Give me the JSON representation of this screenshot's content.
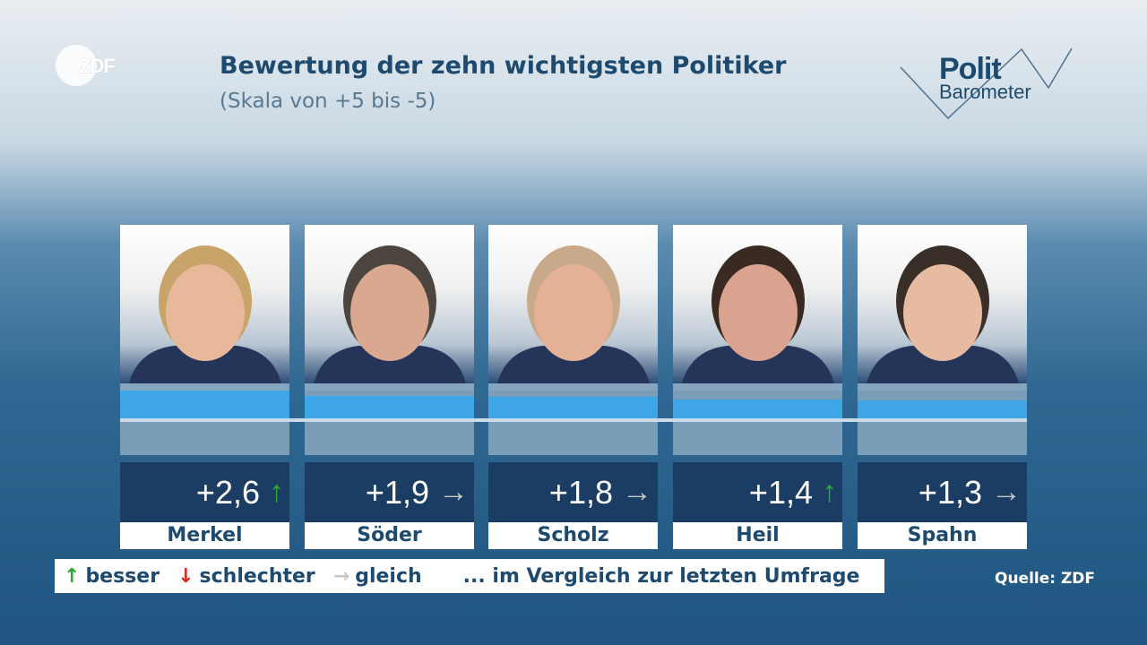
{
  "branding": {
    "broadcaster": "ZDF",
    "logo_line1": "Polit",
    "logo_line2": "Barometer"
  },
  "header": {
    "title": "Bewertung der zehn wichtigsten Politiker",
    "subtitle": "(Skala von +5 bis -5)"
  },
  "politicians": [
    {
      "name": "Merkel",
      "value": 2.6,
      "value_label": "+2,6",
      "trend": "up",
      "trend_symbol": "↑"
    },
    {
      "name": "Söder",
      "value": 1.9,
      "value_label": "+1,9",
      "trend": "same",
      "trend_symbol": "→"
    },
    {
      "name": "Scholz",
      "value": 1.8,
      "value_label": "+1,8",
      "trend": "same",
      "trend_symbol": "→"
    },
    {
      "name": "Heil",
      "value": 1.4,
      "value_label": "+1,4",
      "trend": "up",
      "trend_symbol": "↑"
    },
    {
      "name": "Spahn",
      "value": 1.3,
      "value_label": "+1,3",
      "trend": "same",
      "trend_symbol": "→"
    }
  ],
  "legend": {
    "up_symbol": "↑",
    "up": "besser",
    "down_symbol": "↓",
    "down": "schlechter",
    "same_symbol": "→",
    "same": "gleich",
    "note": "... im Vergleich zur letzten Umfrage"
  },
  "source": "Quelle: ZDF",
  "colors": {
    "up": "#2fa836",
    "down": "#e0261c",
    "same": "#c8c8c8",
    "bar": "#3ea5e6",
    "name": "#1d4a6e"
  }
}
